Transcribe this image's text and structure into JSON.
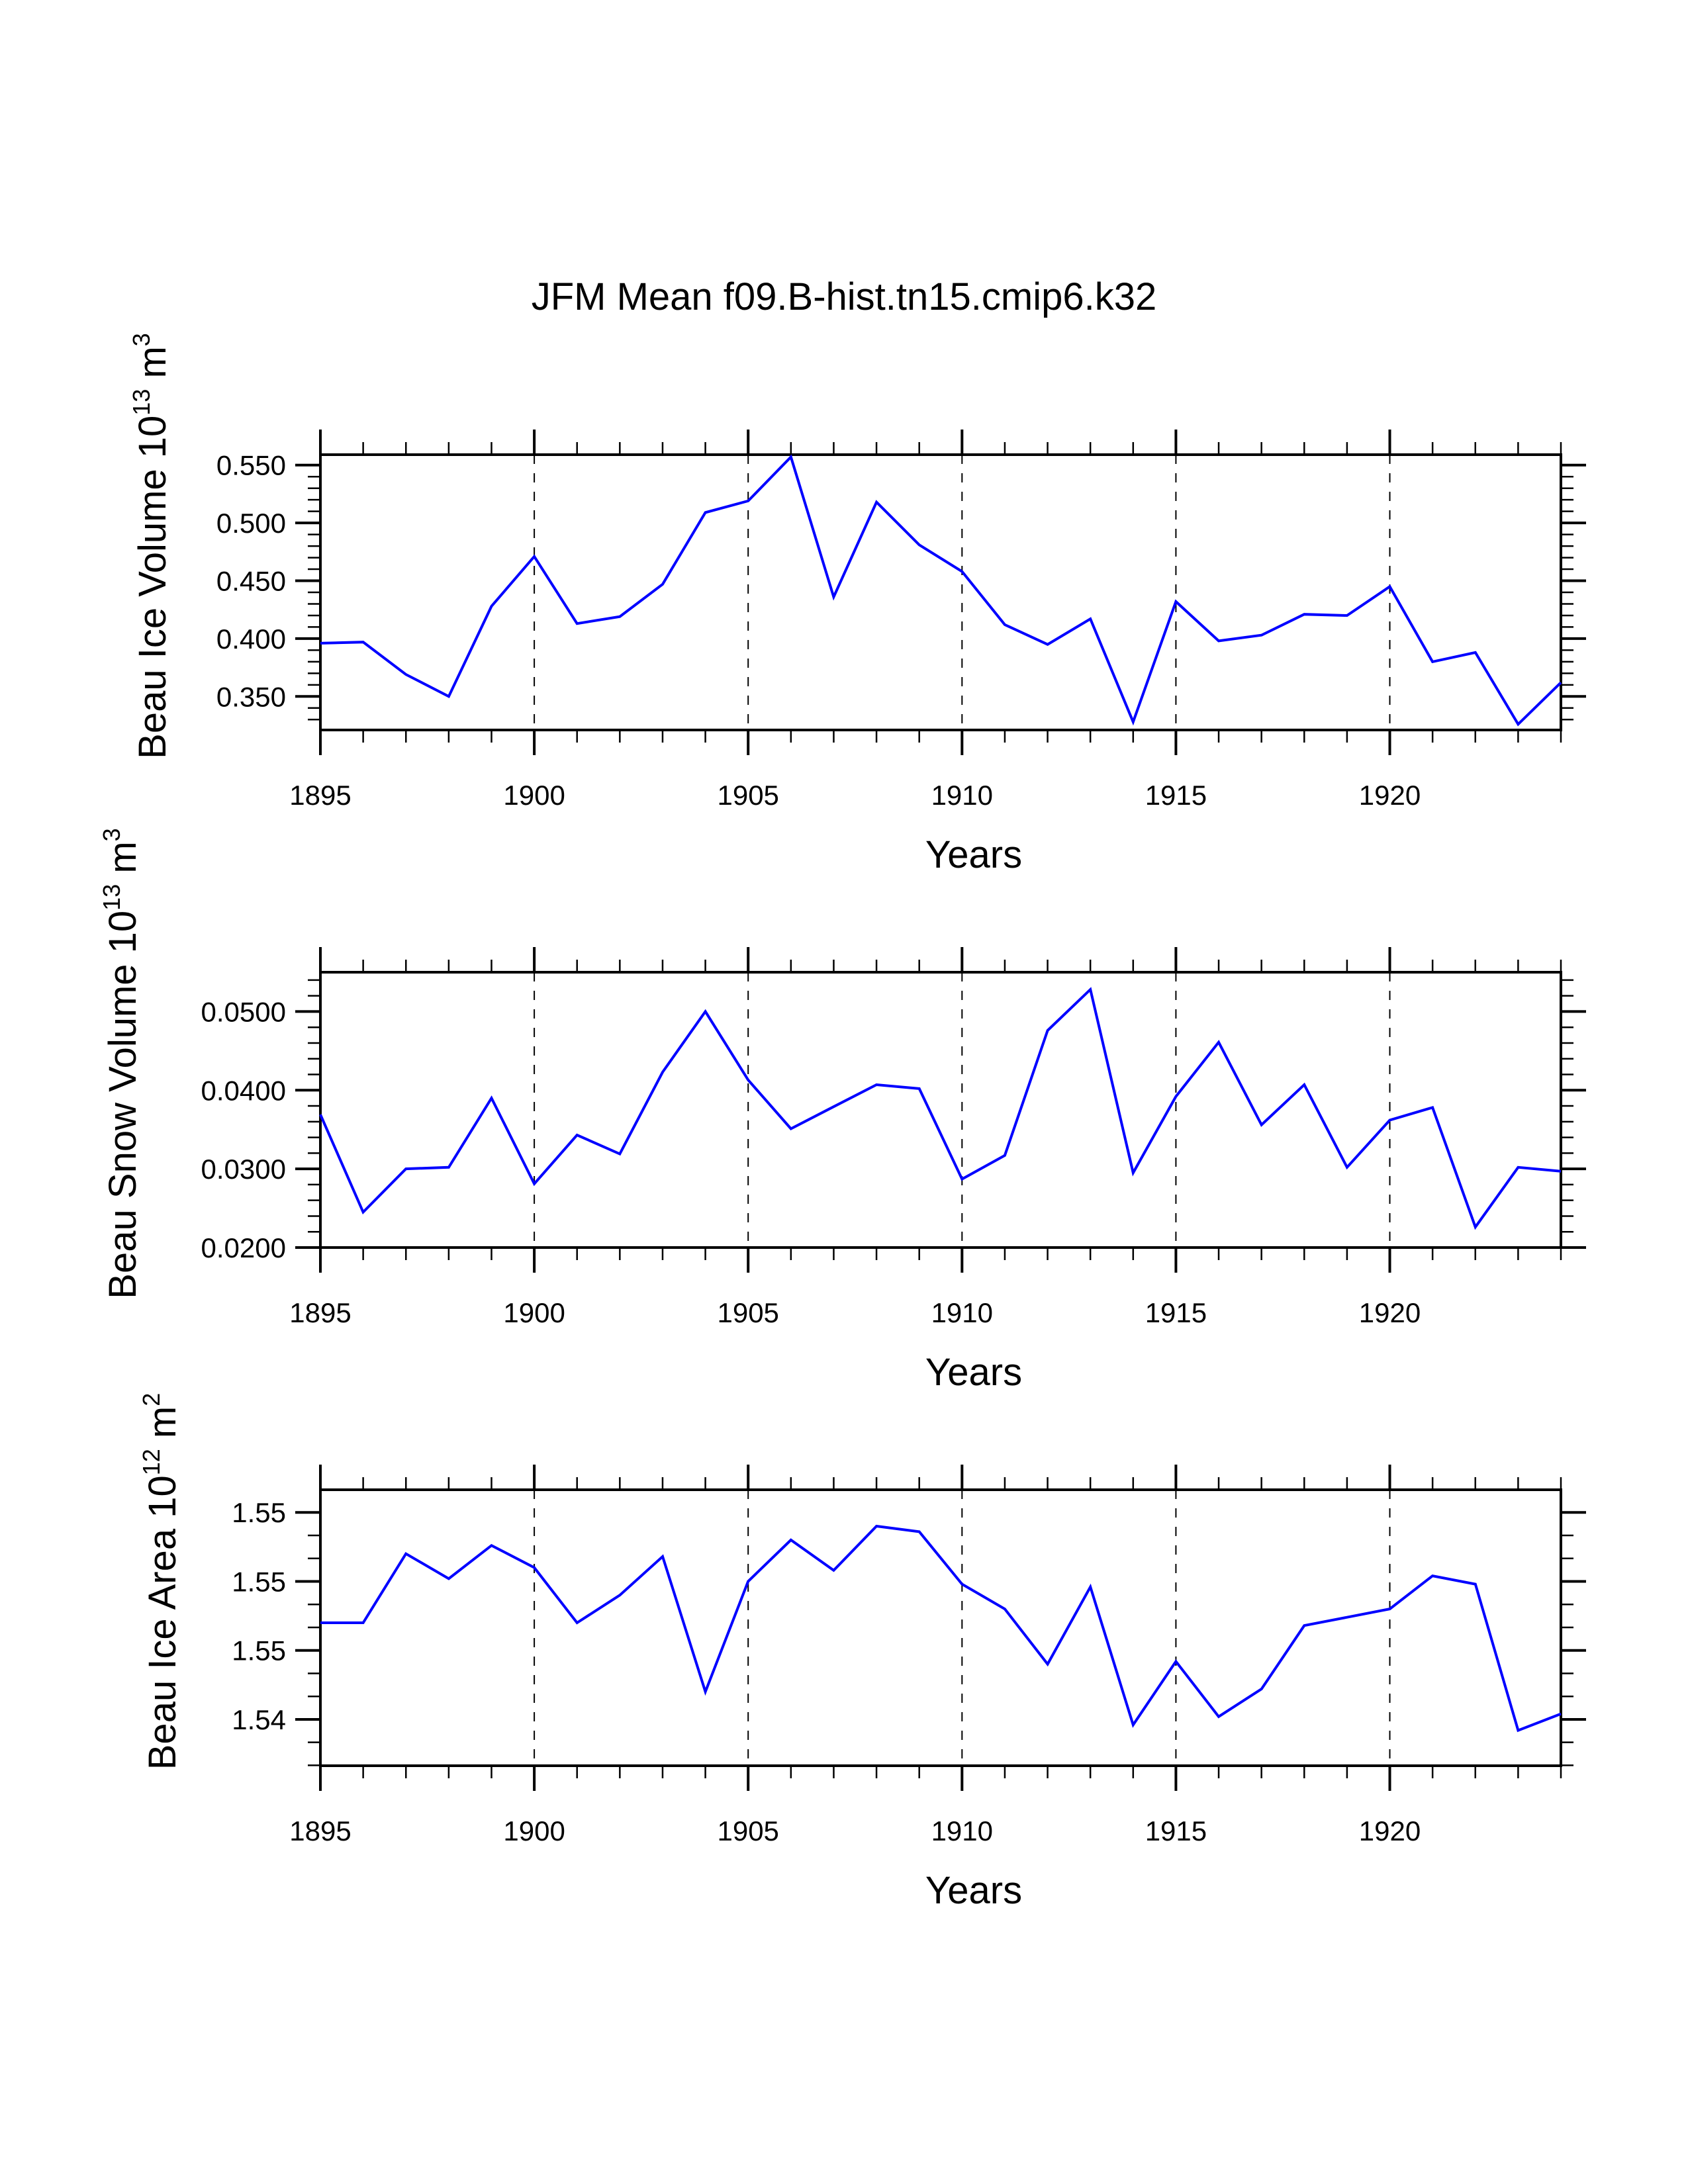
{
  "title": "JFM Mean f09.B-hist.tn15.cmip6.k32",
  "colors": {
    "series": "#0000ff",
    "axes": "#000000",
    "background": "#ffffff"
  },
  "chart_data": [
    {
      "type": "line",
      "title": "JFM Mean f09.B-hist.tn15.cmip6.k32",
      "xlabel": "Years",
      "ylabel": {
        "main": "Beau Ice Volume 10",
        "exp": "13",
        "unit": " m",
        "unit_exp": "3"
      },
      "xlim": [
        1895,
        1924
      ],
      "ylim": [
        0.321,
        0.559
      ],
      "xticks": {
        "major": [
          1895,
          1900,
          1905,
          1910,
          1915,
          1920
        ],
        "labels": [
          "1895",
          "1900",
          "1905",
          "1910",
          "1915",
          "1920"
        ],
        "minor_step": 1
      },
      "yticks": {
        "major": [
          0.55,
          0.5,
          0.45,
          0.4,
          0.35
        ],
        "labels": [
          "0.550",
          "0.500",
          "0.450",
          "0.400",
          "0.350"
        ],
        "minor_step": 0.01
      },
      "grid": "vertical dashed at major x ticks",
      "series": [
        {
          "name": "Beau Ice Volume",
          "x": [
            1895,
            1896,
            1897,
            1898,
            1899,
            1900,
            1901,
            1902,
            1903,
            1904,
            1905,
            1906,
            1907,
            1908,
            1909,
            1910,
            1911,
            1912,
            1913,
            1914,
            1915,
            1916,
            1917,
            1918,
            1919,
            1920,
            1921,
            1922,
            1923,
            1924
          ],
          "values": [
            0.396,
            0.397,
            0.369,
            0.35,
            0.428,
            0.471,
            0.413,
            0.419,
            0.447,
            0.509,
            0.519,
            0.557,
            0.436,
            0.518,
            0.481,
            0.458,
            0.412,
            0.395,
            0.417,
            0.328,
            0.432,
            0.398,
            0.403,
            0.421,
            0.42,
            0.445,
            0.38,
            0.388,
            0.326,
            0.362
          ]
        }
      ]
    },
    {
      "type": "line",
      "title": "",
      "xlabel": "Years",
      "ylabel": {
        "main": "Beau Snow Volume 10",
        "exp": "13",
        "unit": " m",
        "unit_exp": "3"
      },
      "xlim": [
        1895,
        1924
      ],
      "ylim": [
        0.02,
        0.055
      ],
      "xticks": {
        "major": [
          1895,
          1900,
          1905,
          1910,
          1915,
          1920
        ],
        "labels": [
          "1895",
          "1900",
          "1905",
          "1910",
          "1915",
          "1920"
        ],
        "minor_step": 1
      },
      "yticks": {
        "major": [
          0.05,
          0.04,
          0.03,
          0.02
        ],
        "labels": [
          "0.0500",
          "0.0400",
          "0.0300",
          "0.0200"
        ],
        "minor_step": 0.002
      },
      "grid": "vertical dashed at major x ticks",
      "series": [
        {
          "name": "Beau Snow Volume",
          "x": [
            1895,
            1896,
            1897,
            1898,
            1899,
            1900,
            1901,
            1902,
            1903,
            1904,
            1905,
            1906,
            1907,
            1908,
            1909,
            1910,
            1911,
            1912,
            1913,
            1914,
            1915,
            1916,
            1917,
            1918,
            1919,
            1920,
            1921,
            1922,
            1923,
            1924
          ],
          "values": [
            0.0369,
            0.0245,
            0.03,
            0.0302,
            0.039,
            0.0281,
            0.0343,
            0.0319,
            0.0423,
            0.05,
            0.0413,
            0.0351,
            0.0379,
            0.0407,
            0.0402,
            0.0287,
            0.0317,
            0.0476,
            0.0528,
            0.0295,
            0.0392,
            0.0461,
            0.0356,
            0.0407,
            0.0302,
            0.0362,
            0.0378,
            0.0226,
            0.0302,
            0.0297
          ]
        }
      ]
    },
    {
      "type": "line",
      "title": "",
      "xlabel": "Years",
      "ylabel": {
        "main": "Beau Ice Area 10",
        "exp": "12",
        "unit": " m",
        "unit_exp": "2"
      },
      "xlim": [
        1895,
        1924
      ],
      "ylim": [
        1.54332,
        1.55332
      ],
      "xticks": {
        "major": [
          1895,
          1900,
          1905,
          1910,
          1915,
          1920
        ],
        "labels": [
          "1895",
          "1900",
          "1905",
          "1910",
          "1915",
          "1920"
        ],
        "minor_step": 1
      },
      "yticks": {
        "major": [
          1.5525,
          1.55,
          1.5475,
          1.545
        ],
        "labels": [
          "1.55",
          "1.55",
          "1.55",
          "1.54"
        ],
        "minor_step": 0.000833
      },
      "grid": "vertical dashed at major x ticks",
      "series": [
        {
          "name": "Beau Ice Area",
          "x": [
            1895,
            1896,
            1897,
            1898,
            1899,
            1900,
            1901,
            1902,
            1903,
            1904,
            1905,
            1906,
            1907,
            1908,
            1909,
            1910,
            1911,
            1912,
            1913,
            1914,
            1915,
            1916,
            1917,
            1918,
            1919,
            1920,
            1921,
            1922,
            1923,
            1924
          ],
          "values": [
            1.5485,
            1.5485,
            1.551,
            1.5501,
            1.5513,
            1.5505,
            1.5485,
            1.5495,
            1.5509,
            1.546,
            1.55,
            1.5515,
            1.5504,
            1.552,
            1.5518,
            1.5499,
            1.549,
            1.547,
            1.5498,
            1.5448,
            1.5471,
            1.5451,
            1.5461,
            1.5484,
            1.5487,
            1.549,
            1.5502,
            1.5499,
            1.5446,
            1.5452
          ]
        }
      ]
    }
  ]
}
